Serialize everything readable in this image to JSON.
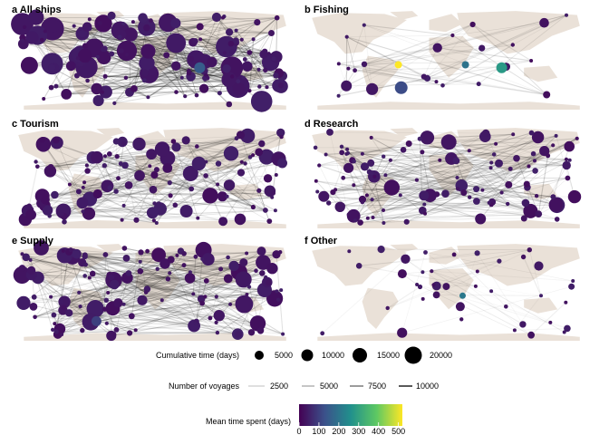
{
  "panels": [
    {
      "id": "a",
      "title": "a All ships"
    },
    {
      "id": "b",
      "title": "b Fishing"
    },
    {
      "id": "c",
      "title": "c Tourism"
    },
    {
      "id": "d",
      "title": "d Research"
    },
    {
      "id": "e",
      "title": "e Supply"
    },
    {
      "id": "f",
      "title": "f Other"
    }
  ],
  "colors": {
    "land": "#eae1d8",
    "edge": "#000000",
    "viridis": [
      "#440154",
      "#3b528b",
      "#21908c",
      "#5dc863",
      "#fde725"
    ]
  },
  "legend": {
    "size_title": "Cumulative time (days)",
    "size_breaks": [
      "5000",
      "10000",
      "15000",
      "20000"
    ],
    "edge_title": "Number of voyages",
    "edge_breaks": [
      "2500",
      "5000",
      "7500",
      "10000"
    ],
    "color_title": "Mean time spent (days)",
    "color_ticks": [
      "0",
      "100",
      "200",
      "300",
      "400",
      "500"
    ]
  },
  "chart_data": {
    "type": "network map (small multiples)",
    "panels": [
      "a All ships",
      "b Fishing",
      "c Tourism",
      "d Research",
      "e Supply",
      "f Other"
    ],
    "node_size": {
      "title": "Cumulative time (days)",
      "breaks": [
        5000,
        10000,
        15000,
        20000
      ]
    },
    "edge_width": {
      "title": "Number of voyages",
      "breaks": [
        2500,
        5000,
        7500,
        10000
      ]
    },
    "node_color": {
      "title": "Mean time spent (days)",
      "scale": "viridis",
      "ticks": [
        0,
        100,
        200,
        300,
        400,
        500
      ],
      "range": [
        0,
        520
      ]
    },
    "highlighted_nodes": [
      {
        "panel": "a",
        "mean_time_days": 150
      },
      {
        "panel": "b",
        "mean_time_days": 520
      },
      {
        "panel": "b",
        "mean_time_days": 280
      },
      {
        "panel": "b",
        "mean_time_days": 200
      },
      {
        "panel": "b",
        "mean_time_days": 120
      },
      {
        "panel": "e",
        "mean_time_days": 100
      },
      {
        "panel": "f",
        "mean_time_days": 210
      }
    ]
  }
}
